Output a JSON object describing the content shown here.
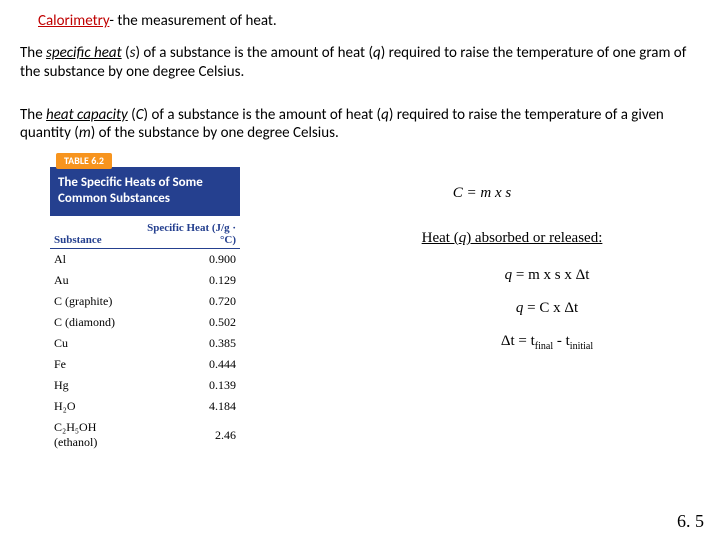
{
  "title_term": "Calorimetry",
  "title_rest": "- the measurement of heat.",
  "para1": {
    "pre": "The ",
    "term": "specific heat",
    "mid1": " (",
    "sym1": "s",
    "mid2": ") of a substance is the amount of heat (",
    "sym2": "q",
    "post": ") required to raise the temperature of one gram of the substance by one degree Celsius."
  },
  "para2": {
    "pre": "The ",
    "term": "heat capacity",
    "mid1": " (",
    "sym1": "C",
    "mid2": ") of a substance is the amount of heat (",
    "sym2": "q",
    "mid3": ") required to raise the temperature of a given quantity (",
    "sym3": "m",
    "post": ") of the substance by one degree Celsius."
  },
  "table": {
    "tag": "TABLE 6.2",
    "title": "The Specific Heats of Some Common Substances",
    "col1": "Substance",
    "col2": "Specific Heat (J/g · °C)",
    "rows": [
      {
        "s": "Al",
        "v": "0.900"
      },
      {
        "s": "Au",
        "v": "0.129"
      },
      {
        "s": "C (graphite)",
        "v": "0.720"
      },
      {
        "s": "C (diamond)",
        "v": "0.502"
      },
      {
        "s": "Cu",
        "v": "0.385"
      },
      {
        "s": "Fe",
        "v": "0.444"
      },
      {
        "s": "Hg",
        "v": "0.139"
      },
      {
        "s": "H₂O",
        "v": "4.184"
      },
      {
        "s": "C₂H₅OH (ethanol)",
        "v": "2.46"
      }
    ]
  },
  "eq1": "C = m x s",
  "section_h_pre": "Heat (",
  "section_h_sym": "q",
  "section_h_post": ") absorbed or released:",
  "eq2_lhs": "q",
  "eq2_rhs": " = m x s x Δt",
  "eq3_lhs": "q",
  "eq3_rhs": " = C x Δt",
  "eq4_lhs": "Δt = t",
  "eq4_sub1": "final",
  "eq4_mid": " - t",
  "eq4_sub2": "initial",
  "pageno": "6. 5"
}
